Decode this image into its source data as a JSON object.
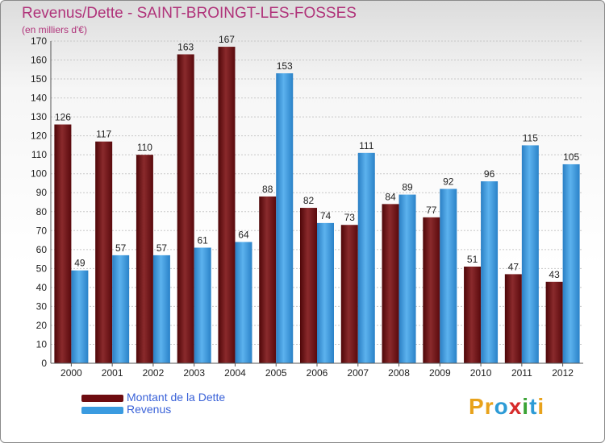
{
  "title": "Revenus/Dette - SAINT-BROINGT-LES-FOSSES",
  "subtitle": "(en milliers d'€)",
  "logo": {
    "letters": [
      "P",
      "r",
      "o",
      "x",
      "i",
      "t",
      "i"
    ],
    "colors": [
      "#e8a21b",
      "#e8a21b",
      "#2d9bd6",
      "#d72b2b",
      "#3aa335",
      "#2d9bd6",
      "#e8a21b"
    ]
  },
  "legend": [
    {
      "label": "Montant de la Dette",
      "color": "#6e0c10"
    },
    {
      "label": "Revenus",
      "color": "#3a9be0"
    }
  ],
  "chart_data": {
    "type": "bar",
    "categories": [
      "2000",
      "2001",
      "2002",
      "2003",
      "2004",
      "2005",
      "2006",
      "2007",
      "2008",
      "2009",
      "2010",
      "2011",
      "2012"
    ],
    "series": [
      {
        "name": "Montant de la Dette",
        "color": "#6e0c10",
        "values": [
          126,
          117,
          110,
          163,
          167,
          88,
          82,
          73,
          84,
          77,
          51,
          47,
          43
        ]
      },
      {
        "name": "Revenus",
        "color": "#3a9be0",
        "values": [
          49,
          57,
          57,
          61,
          64,
          153,
          74,
          111,
          89,
          92,
          96,
          115,
          105
        ]
      }
    ],
    "ylim": [
      0,
      170
    ],
    "yticks": [
      0,
      10,
      20,
      30,
      40,
      50,
      60,
      70,
      80,
      90,
      100,
      110,
      120,
      130,
      140,
      150,
      160,
      170
    ],
    "grid": true,
    "legend_position": "bottom-left"
  }
}
